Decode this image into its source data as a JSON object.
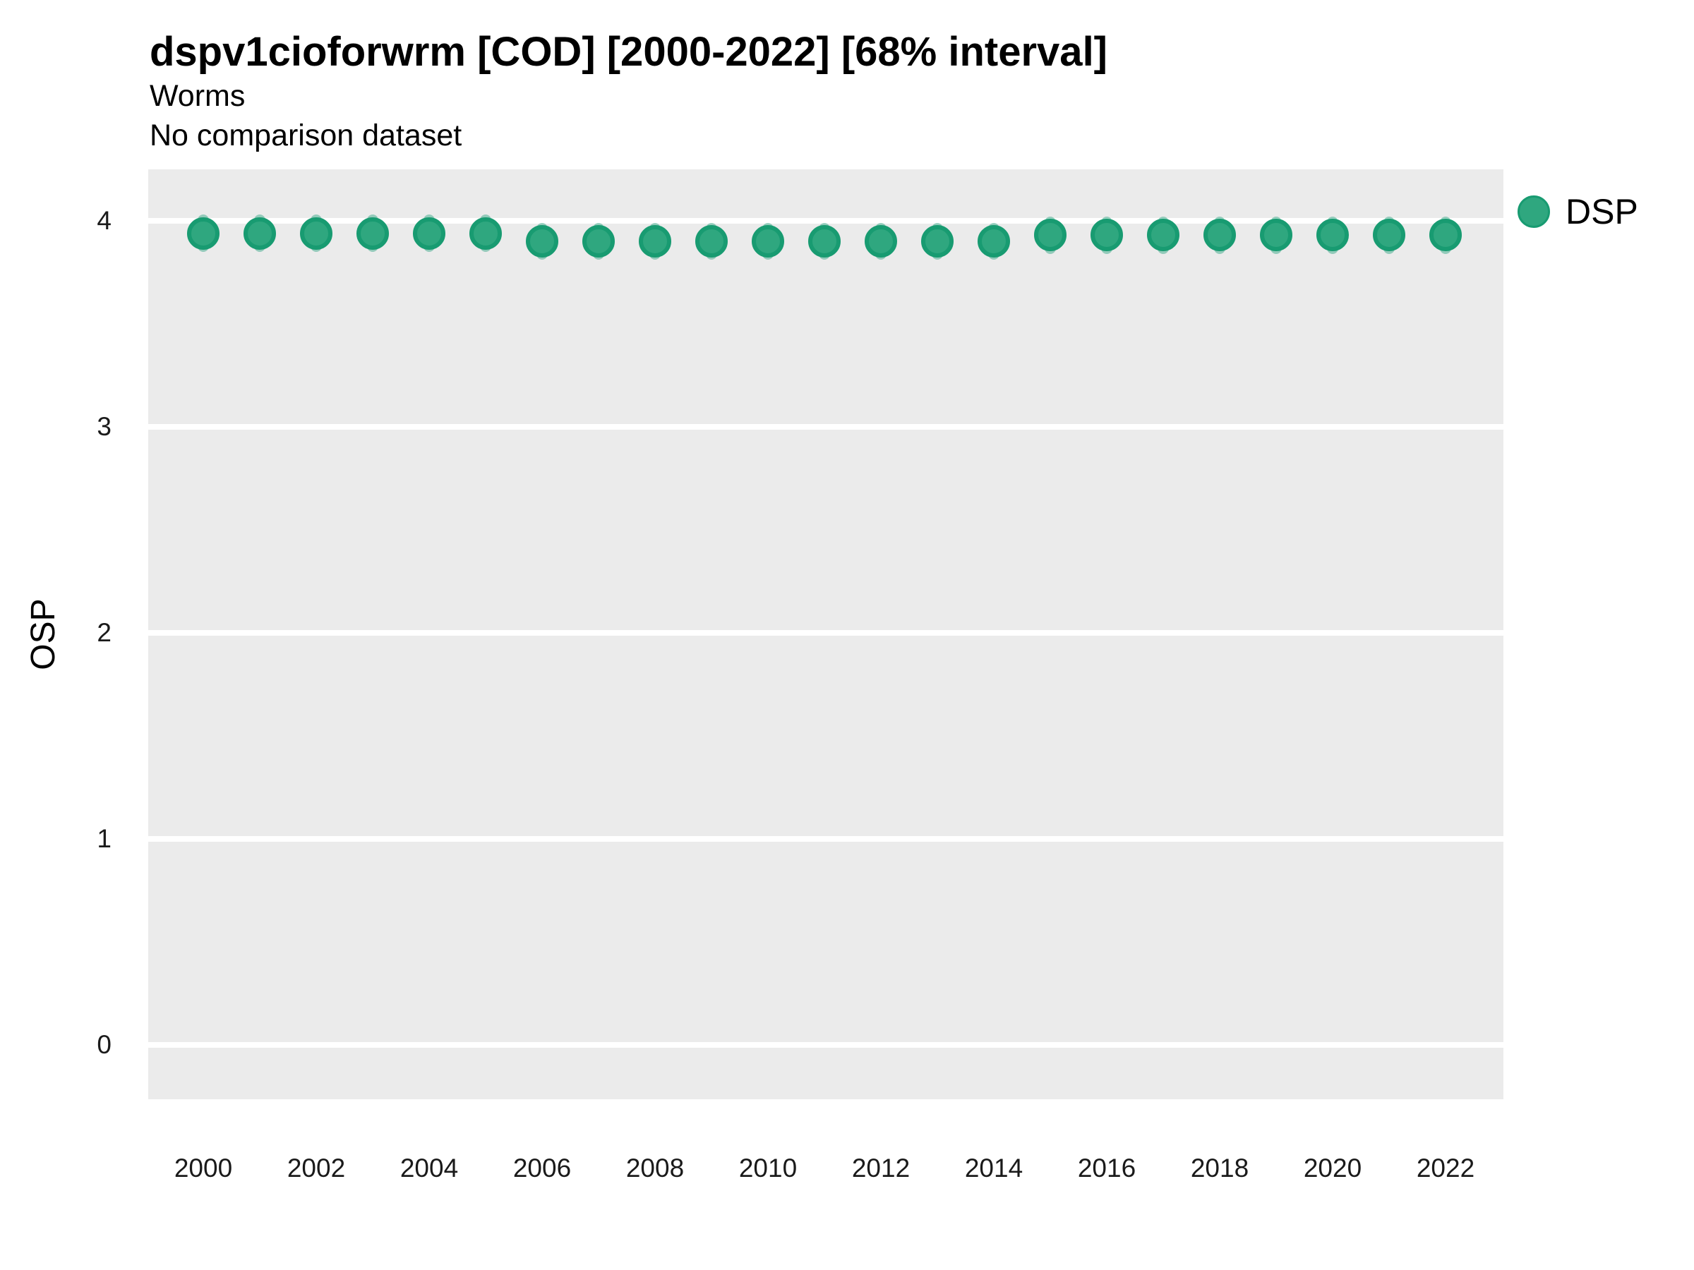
{
  "header": {
    "title": "dspv1cioforwrm [COD] [2000-2022] [68% interval]",
    "subtitle1": "Worms",
    "subtitle2": "No comparison dataset"
  },
  "legend": {
    "items": [
      {
        "label": "DSP",
        "color": "#2FA77F"
      }
    ]
  },
  "axes": {
    "y_label": "OSP",
    "y_ticks": [
      4,
      3,
      2,
      1,
      0
    ],
    "x_ticks": [
      2000,
      2002,
      2004,
      2006,
      2008,
      2010,
      2012,
      2014,
      2016,
      2018,
      2020,
      2022
    ]
  },
  "colors": {
    "panel_background": "#EBEBEB",
    "gridline": "#FFFFFF",
    "point_fill": "#2FA77F",
    "point_stroke": "#189B71",
    "interval": "rgba(27,158,119,0.42)",
    "text": "#000000"
  },
  "chart_data": {
    "type": "scatter",
    "title": "dspv1cioforwrm [COD] [2000-2022] [68% interval]",
    "subtitle": "Worms",
    "note": "No comparison dataset",
    "xlabel": "",
    "ylabel": "OSP",
    "ylim": [
      -0.26,
      4.25
    ],
    "xlim": [
      1999.0,
      2023.05
    ],
    "grid": "horizontal-major-only",
    "legend_position": "right-top",
    "interval_label": "68% interval",
    "interval_halfwidth": 0.09,
    "series": [
      {
        "name": "DSP",
        "x": [
          2000,
          2001,
          2002,
          2003,
          2004,
          2005,
          2006,
          2007,
          2008,
          2009,
          2010,
          2011,
          2012,
          2013,
          2014,
          2015,
          2016,
          2017,
          2018,
          2019,
          2020,
          2021,
          2022
        ],
        "y": [
          3.94,
          3.94,
          3.94,
          3.94,
          3.94,
          3.94,
          3.9,
          3.9,
          3.9,
          3.9,
          3.9,
          3.9,
          3.9,
          3.9,
          3.9,
          3.93,
          3.93,
          3.93,
          3.93,
          3.93,
          3.93,
          3.93,
          3.93
        ]
      }
    ]
  }
}
